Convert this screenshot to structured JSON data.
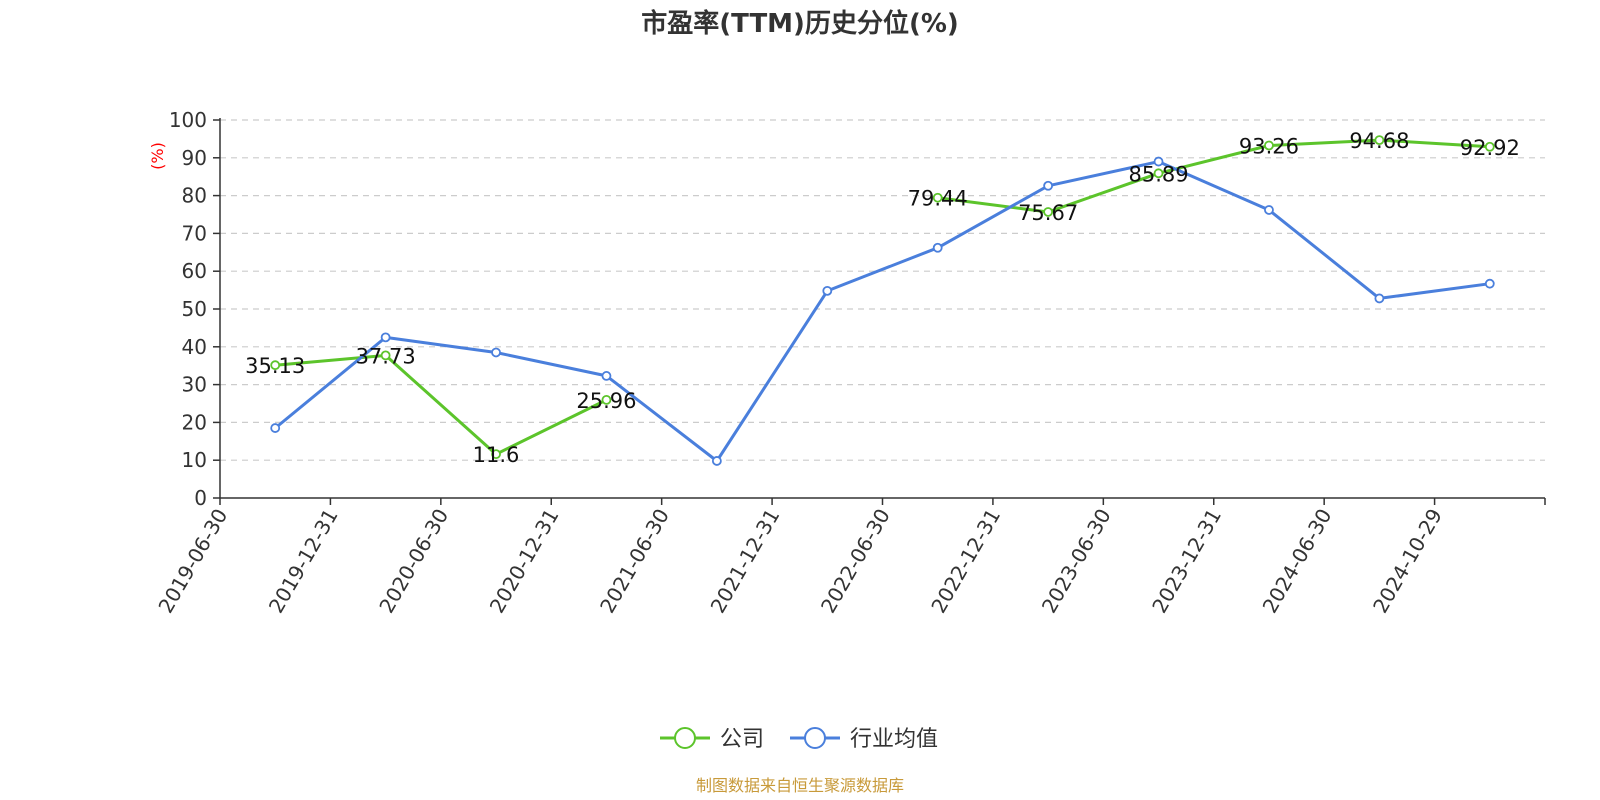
{
  "chart_data": {
    "type": "line",
    "title": "市盈率(TTM)历史分位(%)",
    "ylabel": "(%)",
    "ylim": [
      0,
      100
    ],
    "yticks": [
      0,
      10,
      20,
      30,
      40,
      50,
      60,
      70,
      80,
      90,
      100
    ],
    "grid": true,
    "legend_position": "bottom-center",
    "categories": [
      "2019-06-30",
      "2019-12-31",
      "2020-06-30",
      "2020-12-31",
      "2021-06-30",
      "2021-12-31",
      "2022-06-30",
      "2022-12-31",
      "2023-06-30",
      "2023-12-31",
      "2024-06-30",
      "2024-10-29"
    ],
    "series": [
      {
        "name": "公司",
        "color": "#5cc42b",
        "values": [
          35.13,
          37.73,
          11.6,
          25.96,
          null,
          null,
          79.44,
          75.67,
          85.89,
          93.26,
          94.68,
          92.92
        ],
        "labels": [
          "35.13",
          "37.73",
          "11.6",
          "25.96",
          "",
          "",
          "79.44",
          "75.67",
          "85.89",
          "93.26",
          "94.68",
          "92.92"
        ]
      },
      {
        "name": "行业均值",
        "color": "#4a7fdc",
        "values": [
          18.5,
          42.5,
          38.5,
          32.3,
          9.8,
          54.8,
          66.2,
          82.6,
          89.0,
          76.2,
          52.8,
          56.7
        ]
      }
    ],
    "source": "制图数据来自恒生聚源数据库"
  }
}
